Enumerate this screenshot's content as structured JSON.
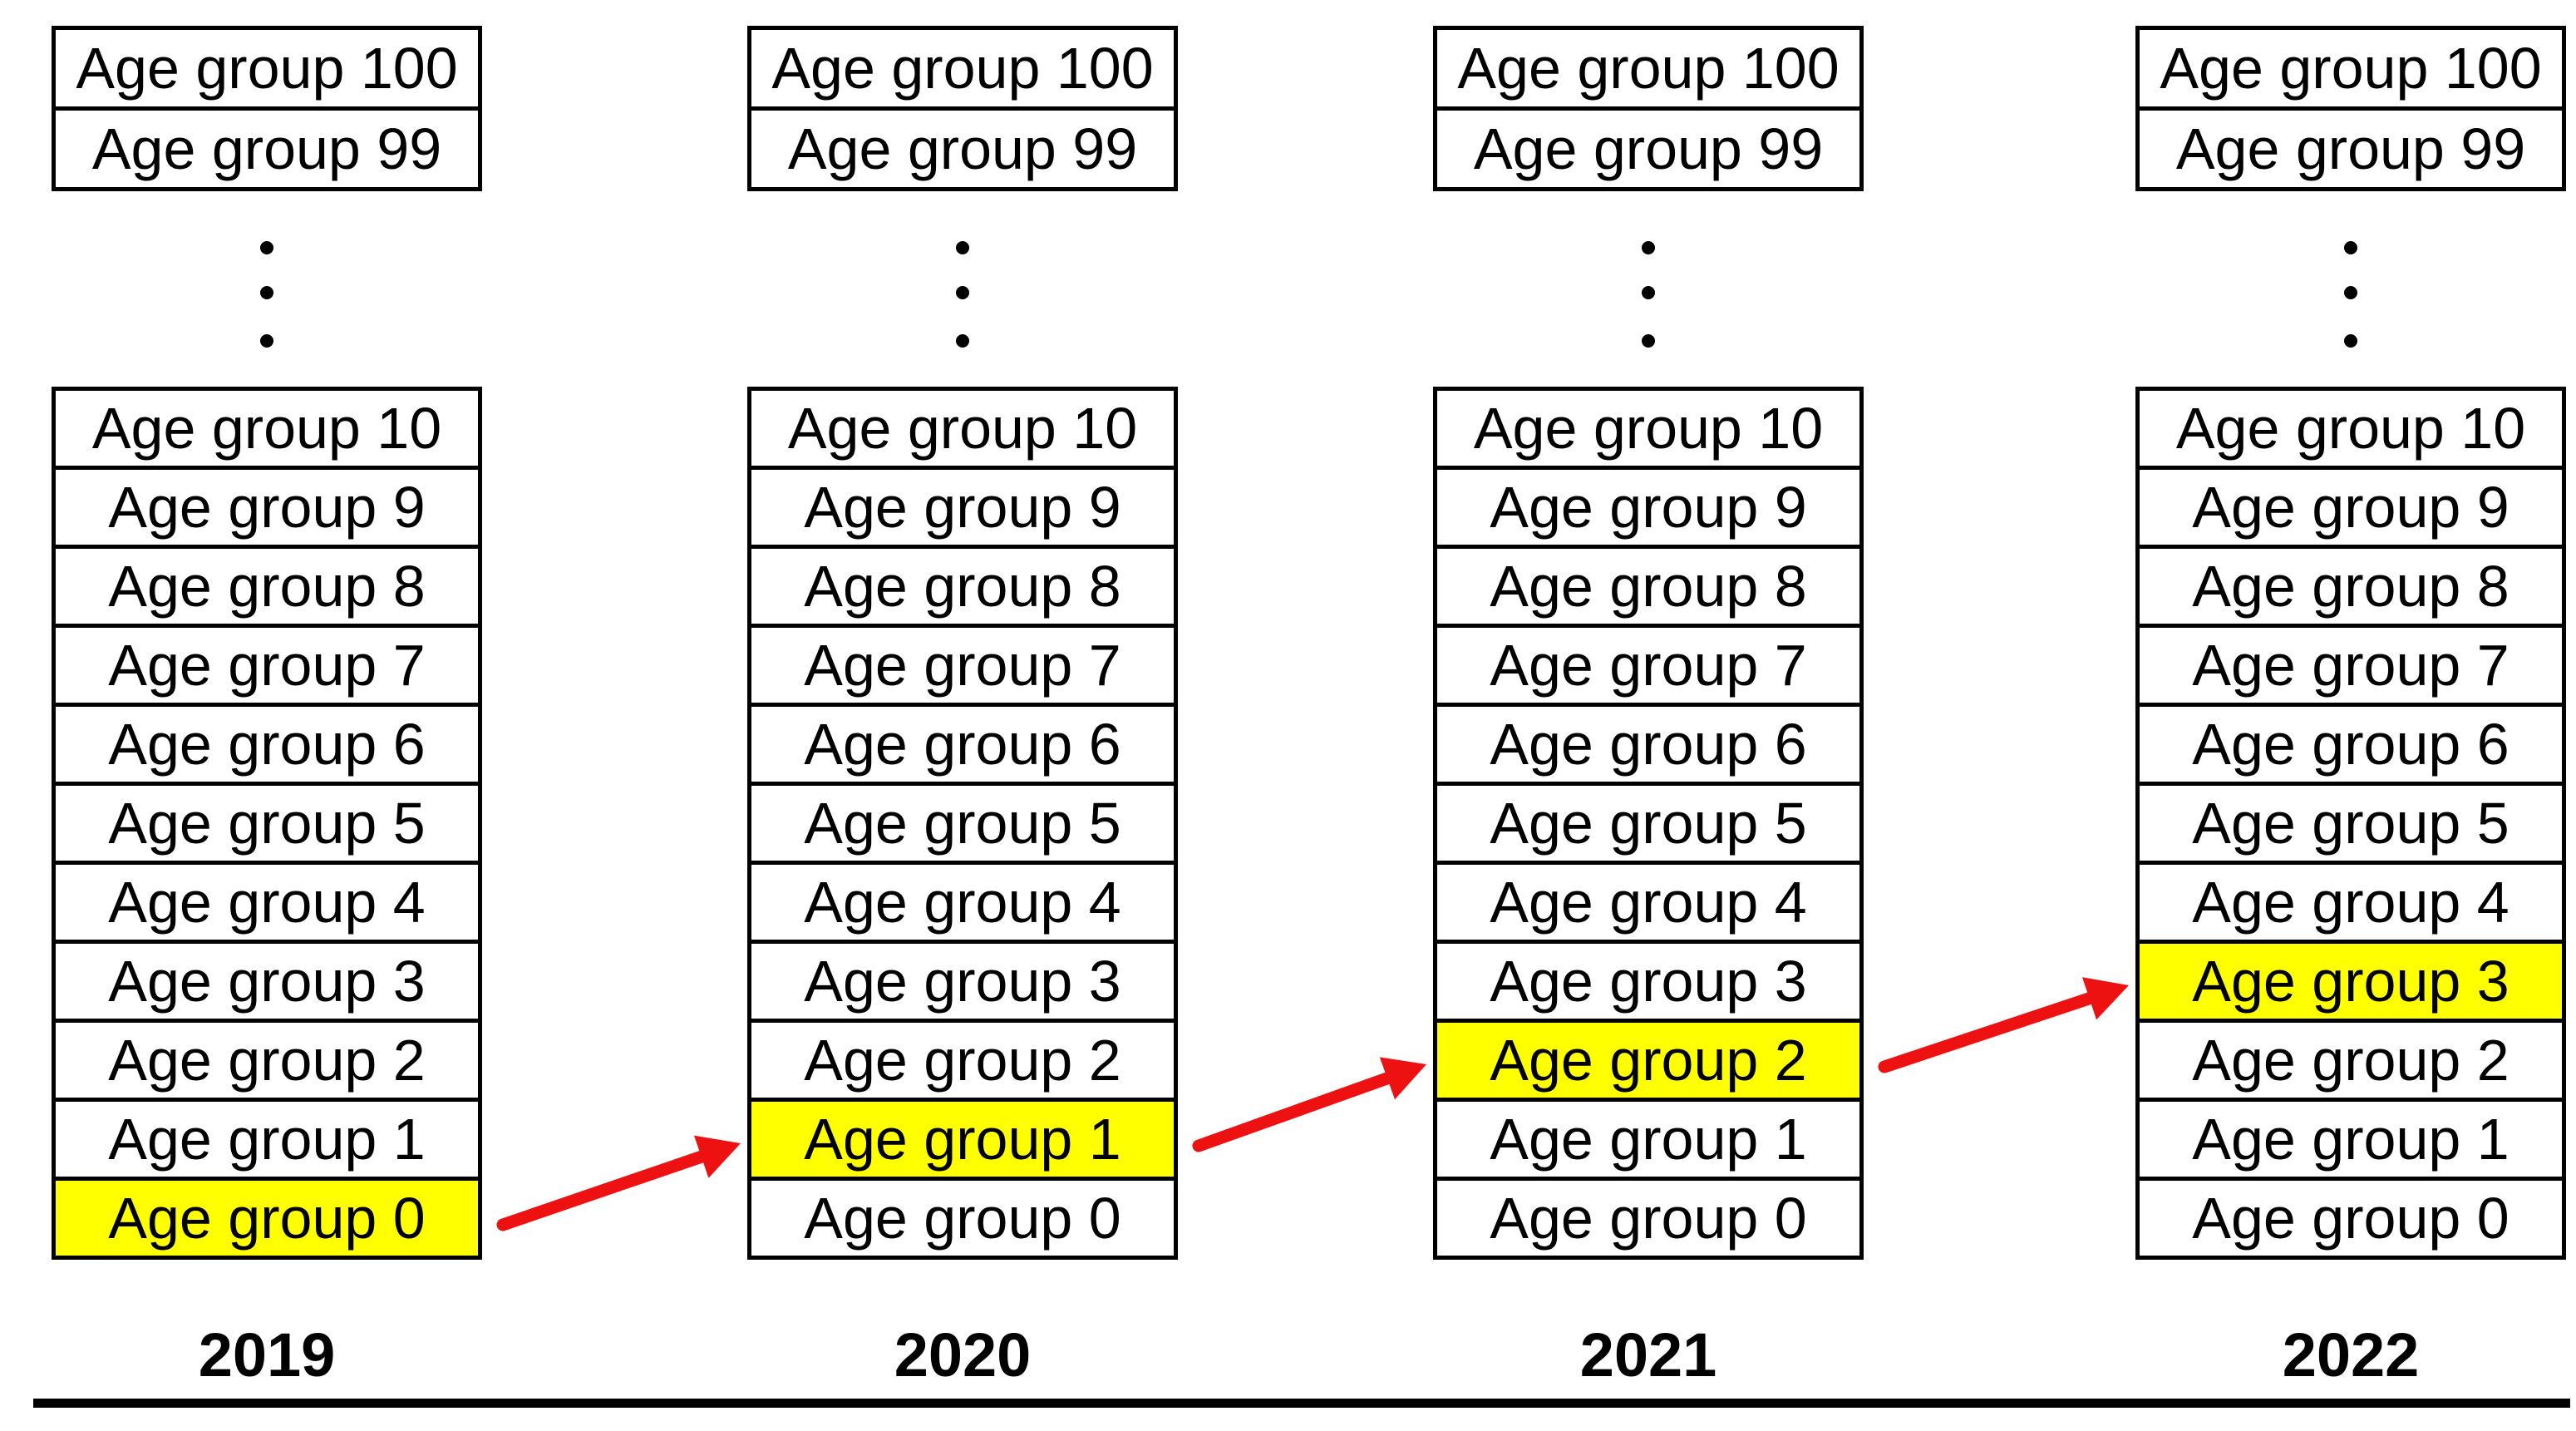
{
  "diagram_title": "",
  "age_rows_top": [
    "Age group 100",
    "Age group 99"
  ],
  "age_rows": [
    "Age group 10",
    "Age group 9",
    "Age group 8",
    "Age group 7",
    "Age group 6",
    "Age group 5",
    "Age group 4",
    "Age group 3",
    "Age group 2",
    "Age group 1",
    "Age group 0"
  ],
  "columns": [
    {
      "year": "2019",
      "highlight_group": "Age group 0"
    },
    {
      "year": "2020",
      "highlight_group": "Age group 1"
    },
    {
      "year": "2021",
      "highlight_group": "Age group 2"
    },
    {
      "year": "2022",
      "highlight_group": "Age group 3"
    }
  ],
  "ellipsis": {
    "dot_count": 3
  },
  "arrows": [
    {
      "from_year": "2019",
      "from_group": "Age group 0",
      "to_year": "2020",
      "to_group": "Age group 1"
    },
    {
      "from_year": "2020",
      "from_group": "Age group 1",
      "to_year": "2021",
      "to_group": "Age group 2"
    },
    {
      "from_year": "2021",
      "from_group": "Age group 2",
      "to_year": "2022",
      "to_group": "Age group 3"
    }
  ],
  "colors": {
    "highlight_yellow": "#ffff00",
    "arrow_red": "#ee1111",
    "border_black": "#000000",
    "background": "#ffffff"
  }
}
